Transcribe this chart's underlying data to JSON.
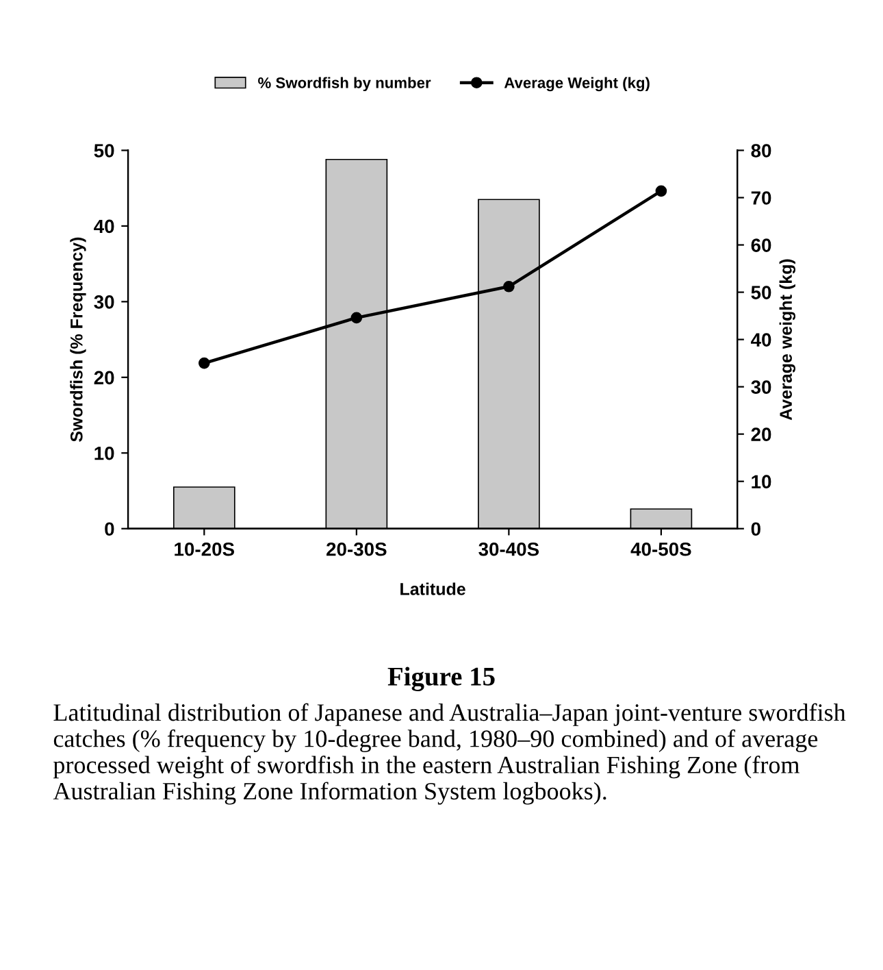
{
  "chart_data": {
    "type": "bar",
    "title": "Figure 15",
    "categories": [
      "10-20S",
      "20-30S",
      "30-40S",
      "40-50S"
    ],
    "series": [
      {
        "name": "% Swordfish by number",
        "color": "#c8c8c8",
        "values": [
          5.5,
          48.8,
          43.5,
          2.6
        ]
      },
      {
        "name": "Average Weight (kg)",
        "type": "line",
        "axis": "y2",
        "color": "#000000",
        "values": [
          35.0,
          44.6,
          51.2,
          71.4
        ]
      }
    ],
    "xlabel": "Latitude",
    "ylabel": "Swordfish (% Frequency)",
    "y2label": "Average weight (kg)",
    "ylim": [
      0,
      50
    ],
    "yticks": [
      0,
      10,
      20,
      30,
      40,
      50
    ],
    "y2lim": [
      0,
      80
    ],
    "y2ticks": [
      0,
      10,
      20,
      30,
      40,
      50,
      60,
      70,
      80
    ],
    "legend": "top",
    "marker": "circle",
    "line_style": "solid",
    "annotations": [
      "Latitudinal distribution of Japanese and Australia–Japan joint-venture swordfish catches (% frequency by 10-degree band, 1980–90 combined) and of average processed weight of swordfish in the eastern Australian Fishing Zone (from Australian Fishing Zone Information System logbooks)."
    ]
  }
}
